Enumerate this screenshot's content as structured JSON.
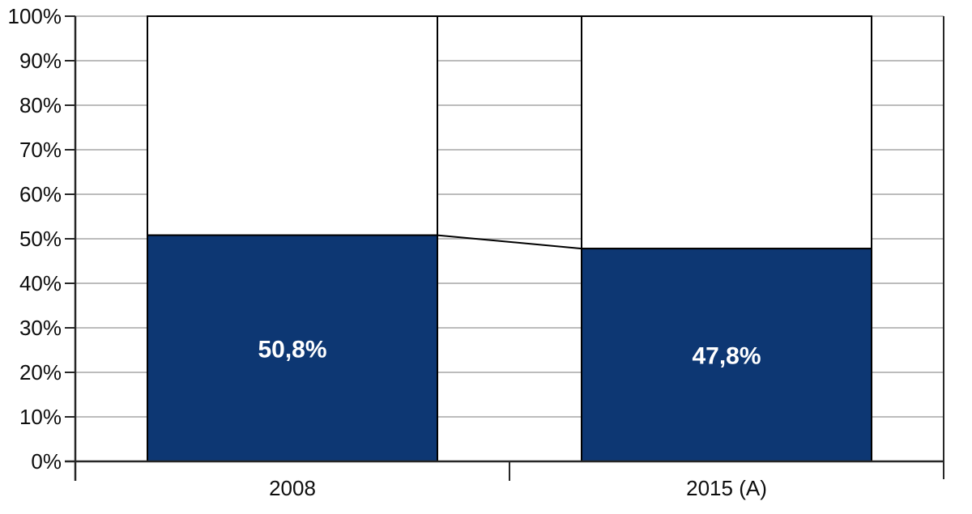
{
  "chart_data": {
    "type": "bar",
    "subtype": "percent-stacked-column",
    "title": "",
    "xlabel": "",
    "ylabel": "",
    "categories": [
      "2008",
      "2015 (A)"
    ],
    "series": [
      {
        "name": "filled-share",
        "values": [
          50.8,
          47.8
        ],
        "labels": [
          "50,8%",
          "47,8%"
        ],
        "color": "#0d3773",
        "label_color": "#ffffff"
      },
      {
        "name": "remainder",
        "values": [
          49.2,
          52.2
        ],
        "labels": [
          "",
          ""
        ],
        "color": "#ffffff"
      }
    ],
    "y_axis": {
      "min": 0,
      "max": 100,
      "step": 10,
      "ticks": [
        "0%",
        "10%",
        "20%",
        "30%",
        "40%",
        "50%",
        "60%",
        "70%",
        "80%",
        "90%",
        "100%"
      ]
    },
    "grid": true,
    "legend": "none",
    "connector_lines": true
  },
  "colors": {
    "background": "#ffffff",
    "bar_fill": "#0d3773",
    "remainder_fill": "#ffffff",
    "bar_outline": "#000000",
    "connector": "#000000",
    "gridline": "#b2b2b2",
    "axis": "#262626",
    "tick_label_text": "#0d0d0d",
    "bar_label_text": "#ffffff"
  }
}
